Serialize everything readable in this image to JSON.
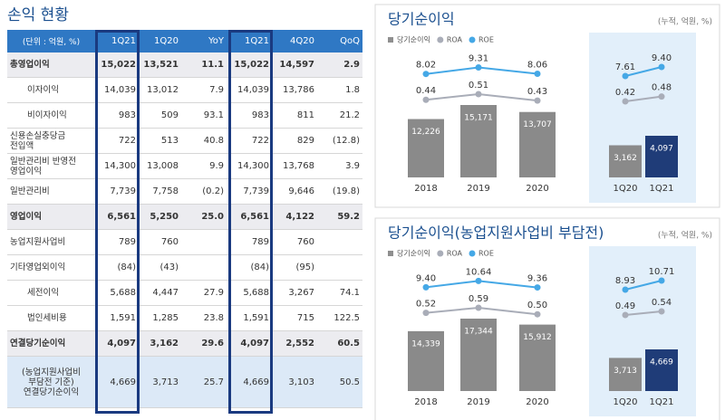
{
  "title": "손익 현황",
  "table": {
    "header": [
      "(단위 : 억원, %)",
      "1Q21",
      "1Q20",
      "YoY",
      "1Q21",
      "4Q20",
      "QoQ"
    ],
    "rows": [
      {
        "label": "총영업이익",
        "kind": "total",
        "cells": [
          "15,022",
          "13,521",
          "11.1",
          "15,022",
          "14,597",
          "2.9"
        ]
      },
      {
        "label": "이자이익",
        "kind": "sub",
        "cells": [
          "14,039",
          "13,012",
          "7.9",
          "14,039",
          "13,786",
          "1.8"
        ]
      },
      {
        "label": "비이자이익",
        "kind": "sub",
        "cells": [
          "983",
          "509",
          "93.1",
          "983",
          "811",
          "21.2"
        ]
      },
      {
        "label": "신용손실충당금\n전입액",
        "kind": "normal",
        "cells": [
          "722",
          "513",
          "40.8",
          "722",
          "829",
          "(12.8)"
        ]
      },
      {
        "label": "일반관리비 반영전\n영업이익",
        "kind": "normal",
        "cells": [
          "14,300",
          "13,008",
          "9.9",
          "14,300",
          "13,768",
          "3.9"
        ]
      },
      {
        "label": "일반관리비",
        "kind": "normal",
        "cells": [
          "7,739",
          "7,758",
          "(0.2)",
          "7,739",
          "9,646",
          "(19.8)"
        ]
      },
      {
        "label": "영업이익",
        "kind": "total",
        "cells": [
          "6,561",
          "5,250",
          "25.0",
          "6,561",
          "4,122",
          "59.2"
        ]
      },
      {
        "label": "농업지원사업비",
        "kind": "normal",
        "cells": [
          "789",
          "760",
          null,
          "789",
          "760",
          null
        ]
      },
      {
        "label": "기타영업외이익",
        "kind": "normal",
        "cells": [
          "(84)",
          "(43)",
          null,
          "(84)",
          "(95)",
          null
        ]
      },
      {
        "label": "세전이익",
        "kind": "sub",
        "cells": [
          "5,688",
          "4,447",
          "27.9",
          "5,688",
          "3,267",
          "74.1"
        ]
      },
      {
        "label": "법인세비용",
        "kind": "sub",
        "cells": [
          "1,591",
          "1,285",
          "23.8",
          "1,591",
          "715",
          "122.5"
        ]
      },
      {
        "label": "연결당기순이익",
        "kind": "total",
        "cells": [
          "4,097",
          "3,162",
          "29.6",
          "4,097",
          "2,552",
          "60.5"
        ]
      },
      {
        "label": "(농업지원사업비\n부담전 기준)\n연결당기순이익",
        "kind": "highlight",
        "cells": [
          "4,669",
          "3,713",
          "25.7",
          "4,669",
          "3,103",
          "50.5"
        ]
      }
    ]
  },
  "chart_data": [
    {
      "type": "bar",
      "title": "당기순이익",
      "note": "(누적, 억원, %)",
      "legend": [
        {
          "name": "당기순이익",
          "color": "#8f8f8f",
          "marker": "square"
        },
        {
          "name": "ROA",
          "color": "#a9adb8",
          "marker": "circle"
        },
        {
          "name": "ROE",
          "color": "#45a8e6",
          "marker": "circle"
        }
      ],
      "panels": [
        {
          "categories": [
            "2018",
            "2019",
            "2020"
          ],
          "highlight": false,
          "series": [
            {
              "values": [
                12226,
                15171,
                13707
              ],
              "value_labels": [
                "12,226",
                "15,171",
                "13,707"
              ],
              "colors": [
                "#8a8a8a",
                "#8a8a8a",
                "#8a8a8a"
              ]
            },
            {
              "values": [
                0.44,
                0.51,
                0.43
              ],
              "value_labels": [
                "0.44",
                "0.51",
                "0.43"
              ]
            },
            {
              "values": [
                8.02,
                9.31,
                8.06
              ],
              "value_labels": [
                "8.02",
                "9.31",
                "8.06"
              ]
            }
          ]
        },
        {
          "categories": [
            "1Q20",
            "1Q21"
          ],
          "highlight": true,
          "series": [
            {
              "values": [
                3162,
                4097
              ],
              "value_labels": [
                "3,162",
                "4,097"
              ],
              "colors": [
                "#8a8a8a",
                "#1f3c78"
              ]
            },
            {
              "values": [
                0.42,
                0.48
              ],
              "value_labels": [
                "0.42",
                "0.48"
              ]
            },
            {
              "values": [
                7.61,
                9.4
              ],
              "value_labels": [
                "7.61",
                "9.40"
              ]
            }
          ]
        }
      ]
    },
    {
      "type": "bar",
      "title": "당기순이익(농업지원사업비 부담전)",
      "note": "(누적, 억원, %)",
      "legend": [
        {
          "name": "당기순이익",
          "color": "#8f8f8f",
          "marker": "square"
        },
        {
          "name": "ROA",
          "color": "#a9adb8",
          "marker": "circle"
        },
        {
          "name": "ROE",
          "color": "#45a8e6",
          "marker": "circle"
        }
      ],
      "panels": [
        {
          "categories": [
            "2018",
            "2019",
            "2020"
          ],
          "highlight": false,
          "series": [
            {
              "values": [
                14339,
                17344,
                15912
              ],
              "value_labels": [
                "14,339",
                "17,344",
                "15,912"
              ],
              "colors": [
                "#8a8a8a",
                "#8a8a8a",
                "#8a8a8a"
              ]
            },
            {
              "values": [
                0.52,
                0.59,
                0.5
              ],
              "value_labels": [
                "0.52",
                "0.59",
                "0.50"
              ]
            },
            {
              "values": [
                9.4,
                10.64,
                9.36
              ],
              "value_labels": [
                "9.40",
                "10.64",
                "9.36"
              ]
            }
          ]
        },
        {
          "categories": [
            "1Q20",
            "1Q21"
          ],
          "highlight": true,
          "series": [
            {
              "values": [
                3713,
                4669
              ],
              "value_labels": [
                "3,713",
                "4,669"
              ],
              "colors": [
                "#8a8a8a",
                "#1f3c78"
              ]
            },
            {
              "values": [
                0.49,
                0.54
              ],
              "value_labels": [
                "0.49",
                "0.54"
              ]
            },
            {
              "values": [
                8.93,
                10.71
              ],
              "value_labels": [
                "8.93",
                "10.71"
              ]
            }
          ]
        }
      ]
    }
  ]
}
